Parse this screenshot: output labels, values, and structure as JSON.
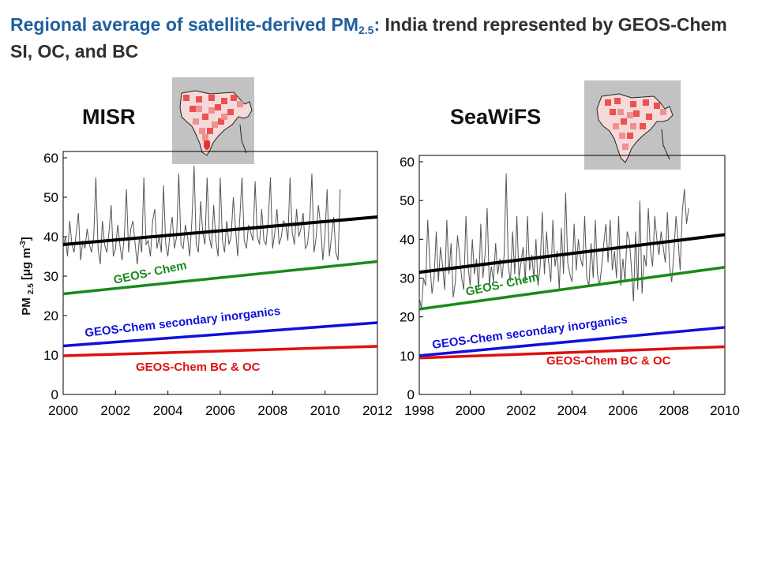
{
  "title": {
    "part1": "Regional average of satellite-derived PM",
    "sub": "2.5",
    "part2": ": ",
    "part3": "India trend represented by GEOS-Chem SI, OC, and BC"
  },
  "ylabel": {
    "pre": "PM ",
    "sub": "2.5",
    "mid": " [μg m",
    "sup": "-3",
    "post": "]"
  },
  "colors": {
    "total": "#000000",
    "geos": "#1a8a1a",
    "si": "#1010dd",
    "bcoc": "#e01010",
    "obs": "#555555",
    "title_blue": "#1f5f9e"
  },
  "chart_data": [
    {
      "type": "line",
      "panel_title": "MISR",
      "xlim": [
        2000,
        2012
      ],
      "ylim": [
        0,
        60
      ],
      "xticks": [
        2000,
        2002,
        2004,
        2006,
        2008,
        2010,
        2012
      ],
      "yticks": [
        0,
        10,
        20,
        30,
        40,
        50,
        60
      ],
      "grid": false,
      "series": [
        {
          "kind": "obs",
          "values_start": 2000.0,
          "values_step": 0.0833,
          "values": [
            37,
            40,
            35,
            44,
            38,
            36,
            41,
            46,
            34,
            39,
            37,
            42,
            38,
            36,
            40,
            55,
            37,
            33,
            44,
            38,
            36,
            41,
            48,
            35,
            37,
            43,
            38,
            34,
            40,
            52,
            36,
            42,
            44,
            38,
            33,
            40,
            36,
            55,
            38,
            39,
            35,
            44,
            47,
            37,
            40,
            36,
            53,
            38,
            35,
            41,
            45,
            37,
            40,
            56,
            38,
            37,
            43,
            40,
            35,
            44,
            58,
            38,
            36,
            49,
            41,
            38,
            55,
            40,
            37,
            48,
            39,
            35,
            55,
            39,
            36,
            44,
            38,
            40,
            50,
            42,
            35,
            45,
            55,
            39,
            37,
            43,
            41,
            39,
            54,
            40,
            38,
            47,
            39,
            38,
            44,
            55,
            37,
            41,
            47,
            38,
            40,
            44,
            43,
            39,
            55,
            41,
            38,
            47,
            40,
            42,
            46,
            37,
            38,
            44,
            56,
            36,
            40,
            48,
            43,
            34,
            40,
            52,
            35,
            40,
            45,
            36,
            34,
            52
          ]
        },
        {
          "kind": "trend",
          "key": "total",
          "x": [
            2000,
            2012
          ],
          "y": [
            38,
            45
          ]
        },
        {
          "kind": "trend",
          "key": "geos",
          "name": "GEOS- Chem",
          "x": [
            2000,
            2012
          ],
          "y": [
            25.5,
            33.7
          ]
        },
        {
          "kind": "trend",
          "key": "si",
          "name": "GEOS-Chem secondary inorganics",
          "x": [
            2000,
            2012
          ],
          "y": [
            12.3,
            18.2
          ]
        },
        {
          "kind": "trend",
          "key": "bcoc",
          "name": "GEOS-Chem BC & OC",
          "x": [
            2000,
            2012
          ],
          "y": [
            9.8,
            12.2
          ]
        }
      ]
    },
    {
      "type": "line",
      "panel_title": "SeaWiFS",
      "xlim": [
        1998,
        2010
      ],
      "ylim": [
        0,
        60
      ],
      "xticks": [
        1998,
        2000,
        2002,
        2004,
        2006,
        2008,
        2010
      ],
      "yticks": [
        0,
        10,
        20,
        30,
        40,
        50,
        60
      ],
      "grid": false,
      "series": [
        {
          "kind": "obs",
          "values_start": 1998.0,
          "values_step": 0.0833,
          "values": [
            25,
            22,
            30,
            28,
            45,
            34,
            26,
            30,
            42,
            29,
            38,
            33,
            27,
            45,
            31,
            39,
            25,
            29,
            41,
            36,
            30,
            27,
            46,
            33,
            28,
            40,
            31,
            35,
            27,
            44,
            30,
            36,
            48,
            28,
            33,
            29,
            39,
            31,
            35,
            30,
            36,
            57,
            33,
            29,
            42,
            31,
            46,
            30,
            34,
            38,
            29,
            46,
            32,
            36,
            30,
            40,
            28,
            33,
            47,
            31,
            42,
            34,
            29,
            45,
            33,
            37,
            27,
            43,
            31,
            52,
            34,
            31,
            29,
            44,
            32,
            40,
            35,
            33,
            46,
            30,
            28,
            39,
            30,
            45,
            31,
            28,
            33,
            39,
            44,
            34,
            45,
            32,
            37,
            30,
            46,
            28,
            35,
            29,
            42,
            40,
            33,
            24,
            42,
            27,
            50,
            26,
            36,
            33,
            48,
            37,
            33,
            46,
            40,
            36,
            42,
            38,
            34,
            47,
            33,
            29,
            36,
            46,
            40,
            32,
            47,
            53,
            44,
            48
          ]
        },
        {
          "kind": "trend",
          "key": "total",
          "x": [
            1998,
            2010
          ],
          "y": [
            31.5,
            41.2
          ]
        },
        {
          "kind": "trend",
          "key": "geos",
          "name": "GEOS- Chem",
          "x": [
            1998,
            2010
          ],
          "y": [
            22,
            32.8
          ]
        },
        {
          "kind": "trend",
          "key": "si",
          "name": "GEOS-Chem secondary inorganics",
          "x": [
            1998,
            2010
          ],
          "y": [
            10,
            17.3
          ]
        },
        {
          "kind": "trend",
          "key": "bcoc",
          "name": "GEOS-Chem BC & OC",
          "x": [
            1998,
            2010
          ],
          "y": [
            9.4,
            12.3
          ]
        }
      ]
    }
  ]
}
